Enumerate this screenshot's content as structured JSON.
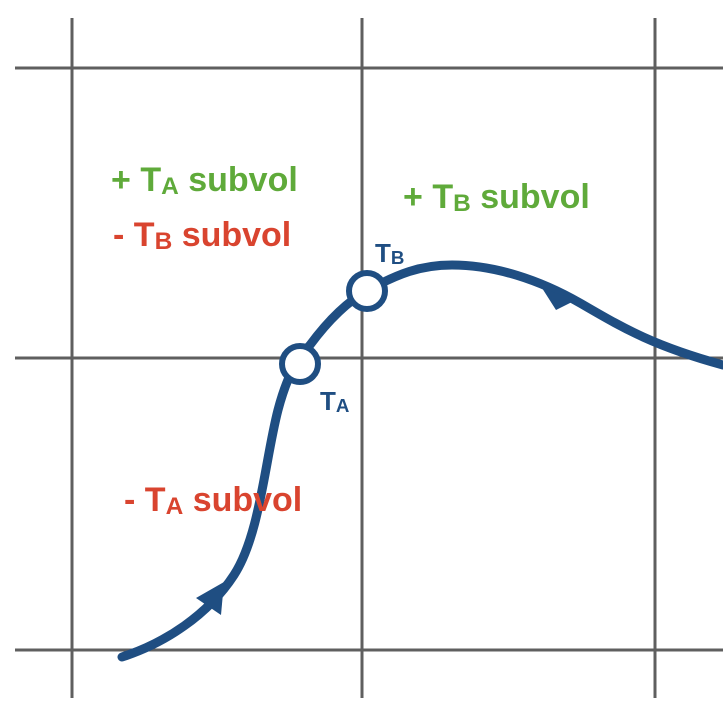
{
  "colors": {
    "grid": "#5f5f5f",
    "trajectory": "#1f4e82",
    "positive": "#5faa3a",
    "negative": "#d9442f"
  },
  "labels": {
    "plus_ta": {
      "sign": "+",
      "letter": "T",
      "subscript": "A",
      "word": "subvol"
    },
    "minus_tb": {
      "sign": "-",
      "letter": "T",
      "subscript": "B",
      "word": "subvol"
    },
    "plus_tb": {
      "sign": "+",
      "letter": "T",
      "subscript": "B",
      "word": "subvol"
    },
    "minus_ta": {
      "sign": "-",
      "letter": "T",
      "subscript": "A",
      "word": "subvol"
    },
    "point_a": {
      "letter": "T",
      "subscript": "A"
    },
    "point_b": {
      "letter": "T",
      "subscript": "B"
    }
  }
}
